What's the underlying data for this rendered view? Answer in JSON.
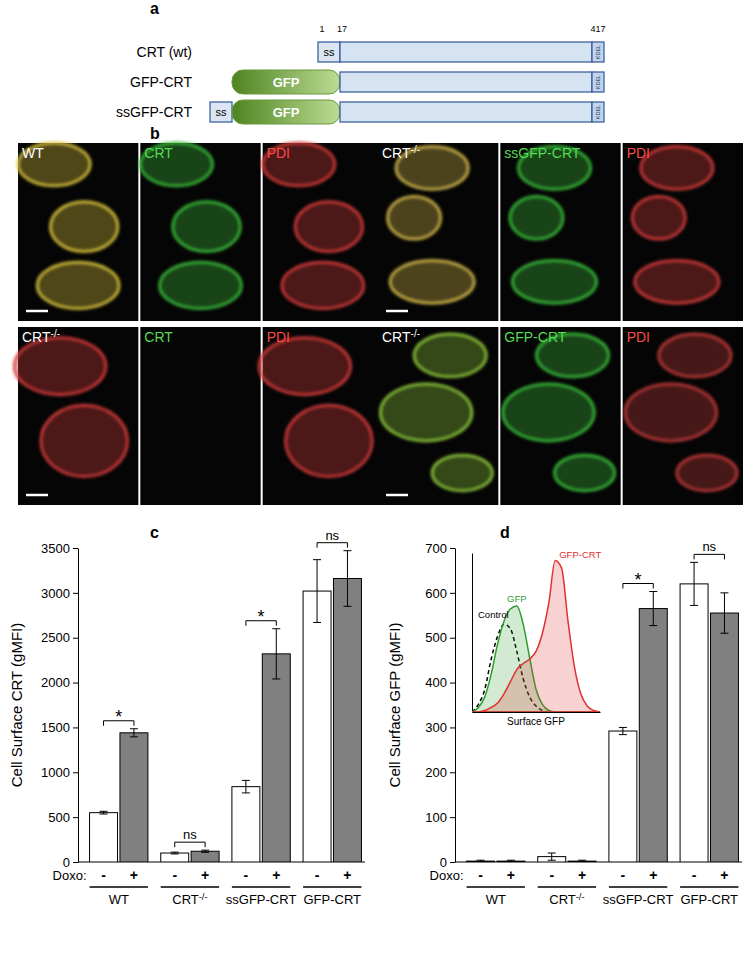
{
  "diagram": {
    "label": "a",
    "residues": [
      1,
      17,
      417
    ],
    "constructs": [
      {
        "name": "CRT (wt)",
        "parts": [
          "ss"
        ],
        "motif": "KDEL"
      },
      {
        "name": "GFP-CRT",
        "parts": [
          "GFP"
        ],
        "motif": "KDEL"
      },
      {
        "name": "ssGFP-CRT",
        "parts": [
          "ss",
          "GFP"
        ],
        "motif": "KDEL"
      }
    ]
  },
  "images": {
    "label": "b",
    "panels": [
      {
        "title": "WT",
        "channels": [
          "CRT",
          "PDI"
        ]
      },
      {
        "title": "CRT-/-",
        "channels": [
          "ssGFP-CRT",
          "PDI"
        ]
      },
      {
        "title": "CRT-/-",
        "channels": [
          "CRT",
          "PDI"
        ]
      },
      {
        "title": "CRT-/-",
        "channels": [
          "GFP-CRT",
          "PDI"
        ]
      }
    ]
  },
  "chart_data": [
    {
      "type": "bar",
      "title": "c",
      "y_label": "Cell Surface CRT (gMFI)",
      "x_label": "Doxo:",
      "categories": [
        "WT",
        "CRT-/-",
        "ssGFP-CRT",
        "GFP-CRT"
      ],
      "series": [
        {
          "name": "-",
          "color": "#ffffff",
          "values": [
            550,
            100,
            840,
            3020
          ],
          "errors": [
            15,
            10,
            70,
            350
          ]
        },
        {
          "name": "+",
          "color": "#808080",
          "values": [
            1440,
            120,
            2320,
            3160
          ],
          "errors": [
            45,
            12,
            280,
            310
          ]
        }
      ],
      "ylim": [
        0,
        3500
      ],
      "yticks": [
        0,
        500,
        1000,
        1500,
        2000,
        2500,
        3000,
        3500
      ],
      "annotations": [
        "*",
        "ns",
        "*",
        "ns"
      ]
    },
    {
      "type": "bar",
      "title": "d",
      "y_label": "Cell Surface GFP (gMFI)",
      "x_label": "Doxo:",
      "categories": [
        "WT",
        "CRT-/-",
        "ssGFP-CRT",
        "GFP-CRT"
      ],
      "series": [
        {
          "name": "-",
          "color": "#ffffff",
          "values": [
            2,
            12,
            292,
            620
          ],
          "errors": [
            2,
            8,
            8,
            48
          ]
        },
        {
          "name": "+",
          "color": "#808080",
          "values": [
            2,
            2,
            565,
            555
          ],
          "errors": [
            2,
            2,
            38,
            45
          ]
        }
      ],
      "ylim": [
        0,
        700
      ],
      "yticks": [
        0,
        100,
        200,
        300,
        400,
        500,
        600,
        700
      ],
      "annotations": [
        null,
        null,
        "*",
        "ns"
      ]
    },
    {
      "type": "line",
      "x_label": "Surface GFP",
      "x": [
        0,
        5,
        10,
        15,
        20,
        25,
        30,
        35,
        40,
        45,
        50,
        55,
        60,
        65,
        70,
        75,
        80,
        85,
        90,
        95,
        100
      ],
      "xlim": [
        0,
        100
      ],
      "ylim": [
        0,
        105
      ],
      "tick_labels": false,
      "series": [
        {
          "name": "Control",
          "color": "#000000",
          "type": "line",
          "line_style": "dashed",
          "values": [
            0,
            5,
            15,
            35,
            50,
            58,
            55,
            40,
            22,
            10,
            4,
            1,
            0,
            0,
            0,
            0,
            0,
            0,
            0,
            0,
            0
          ]
        },
        {
          "name": "GFP",
          "color": "#2e9e2e",
          "type": "area",
          "line_style": "solid",
          "values": [
            0,
            3,
            10,
            25,
            45,
            60,
            68,
            70,
            58,
            36,
            15,
            5,
            1,
            0,
            0,
            0,
            0,
            0,
            0,
            0,
            0
          ]
        },
        {
          "name": "GFP-CRT",
          "color": "#e03030",
          "type": "area",
          "line_style": "solid",
          "values": [
            0,
            0,
            1,
            3,
            6,
            12,
            20,
            28,
            32,
            35,
            40,
            52,
            72,
            100,
            95,
            60,
            30,
            12,
            4,
            1,
            0
          ]
        }
      ]
    }
  ]
}
